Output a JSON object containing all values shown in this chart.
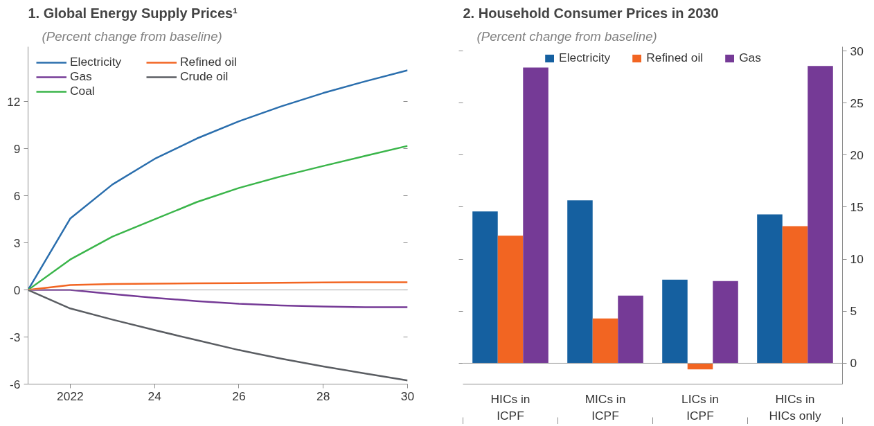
{
  "chart_data": [
    {
      "type": "line",
      "title": "1. Global Energy Supply Prices¹",
      "subtitle": "(Percent change from baseline)",
      "x": [
        2021,
        2022,
        2023,
        2024,
        2025,
        2026,
        2027,
        2028,
        2029,
        2030
      ],
      "xlim": [
        2021,
        2030
      ],
      "xticks": [
        2022,
        {
          "value": 2024,
          "label": "24"
        },
        {
          "value": 2026,
          "label": "26"
        },
        {
          "value": 2028,
          "label": "28"
        },
        {
          "value": 2030,
          "label": "30"
        }
      ],
      "ylim": [
        -6,
        15.5
      ],
      "yticks": [
        -6,
        -3,
        0,
        3,
        6,
        9,
        12
      ],
      "legend": "top left",
      "ref_lines": [
        {
          "axis": "y",
          "value": 0,
          "color": "#a6a6a6"
        }
      ],
      "series": [
        {
          "name": "Electricity",
          "color": "#2a6ead",
          "values": [
            0,
            4.55,
            6.72,
            8.35,
            9.65,
            10.75,
            11.7,
            12.55,
            13.3,
            14.0
          ]
        },
        {
          "name": "Gas",
          "color": "#753a96",
          "values": [
            0,
            0,
            -0.26,
            -0.5,
            -0.71,
            -0.88,
            -0.99,
            -1.06,
            -1.1,
            -1.1
          ]
        },
        {
          "name": "Coal",
          "color": "#3ab54a",
          "values": [
            0,
            1.94,
            3.4,
            4.5,
            5.6,
            6.5,
            7.24,
            7.9,
            8.55,
            9.18
          ]
        },
        {
          "name": "Refined oil",
          "color": "#f26522",
          "values": [
            0,
            0.31,
            0.38,
            0.4,
            0.42,
            0.44,
            0.46,
            0.48,
            0.49,
            0.49
          ]
        },
        {
          "name": "Crude oil",
          "color": "#5a5d62",
          "values": [
            0,
            -1.18,
            -1.89,
            -2.56,
            -3.2,
            -3.83,
            -4.38,
            -4.87,
            -5.33,
            -5.77
          ]
        }
      ]
    },
    {
      "type": "bar",
      "title": "2. Household Consumer Prices in 2030",
      "subtitle": "(Percent change from baseline)",
      "categories": [
        "HICs in ICPF",
        "MICs in ICPF",
        "LICs in ICPF",
        "HICs in HICs only"
      ],
      "y2lim": [
        -2,
        30.4
      ],
      "y2ticks": [
        0,
        5,
        10,
        15,
        20,
        25,
        30
      ],
      "legend": "top",
      "ref_lines": [
        {
          "axis": "y2",
          "value": 0,
          "color": "#a6a6a6"
        }
      ],
      "series": [
        {
          "name": "Electricity",
          "color": "#1560a0",
          "axis": "y2",
          "values": [
            14.58,
            15.64,
            8.03,
            14.3
          ]
        },
        {
          "name": "Refined oil",
          "color": "#f26522",
          "axis": "y2",
          "values": [
            12.25,
            4.3,
            -0.58,
            13.17
          ]
        },
        {
          "name": "Gas",
          "color": "#753a96",
          "axis": "y2",
          "values": [
            28.4,
            6.5,
            7.9,
            28.55
          ]
        }
      ]
    }
  ]
}
